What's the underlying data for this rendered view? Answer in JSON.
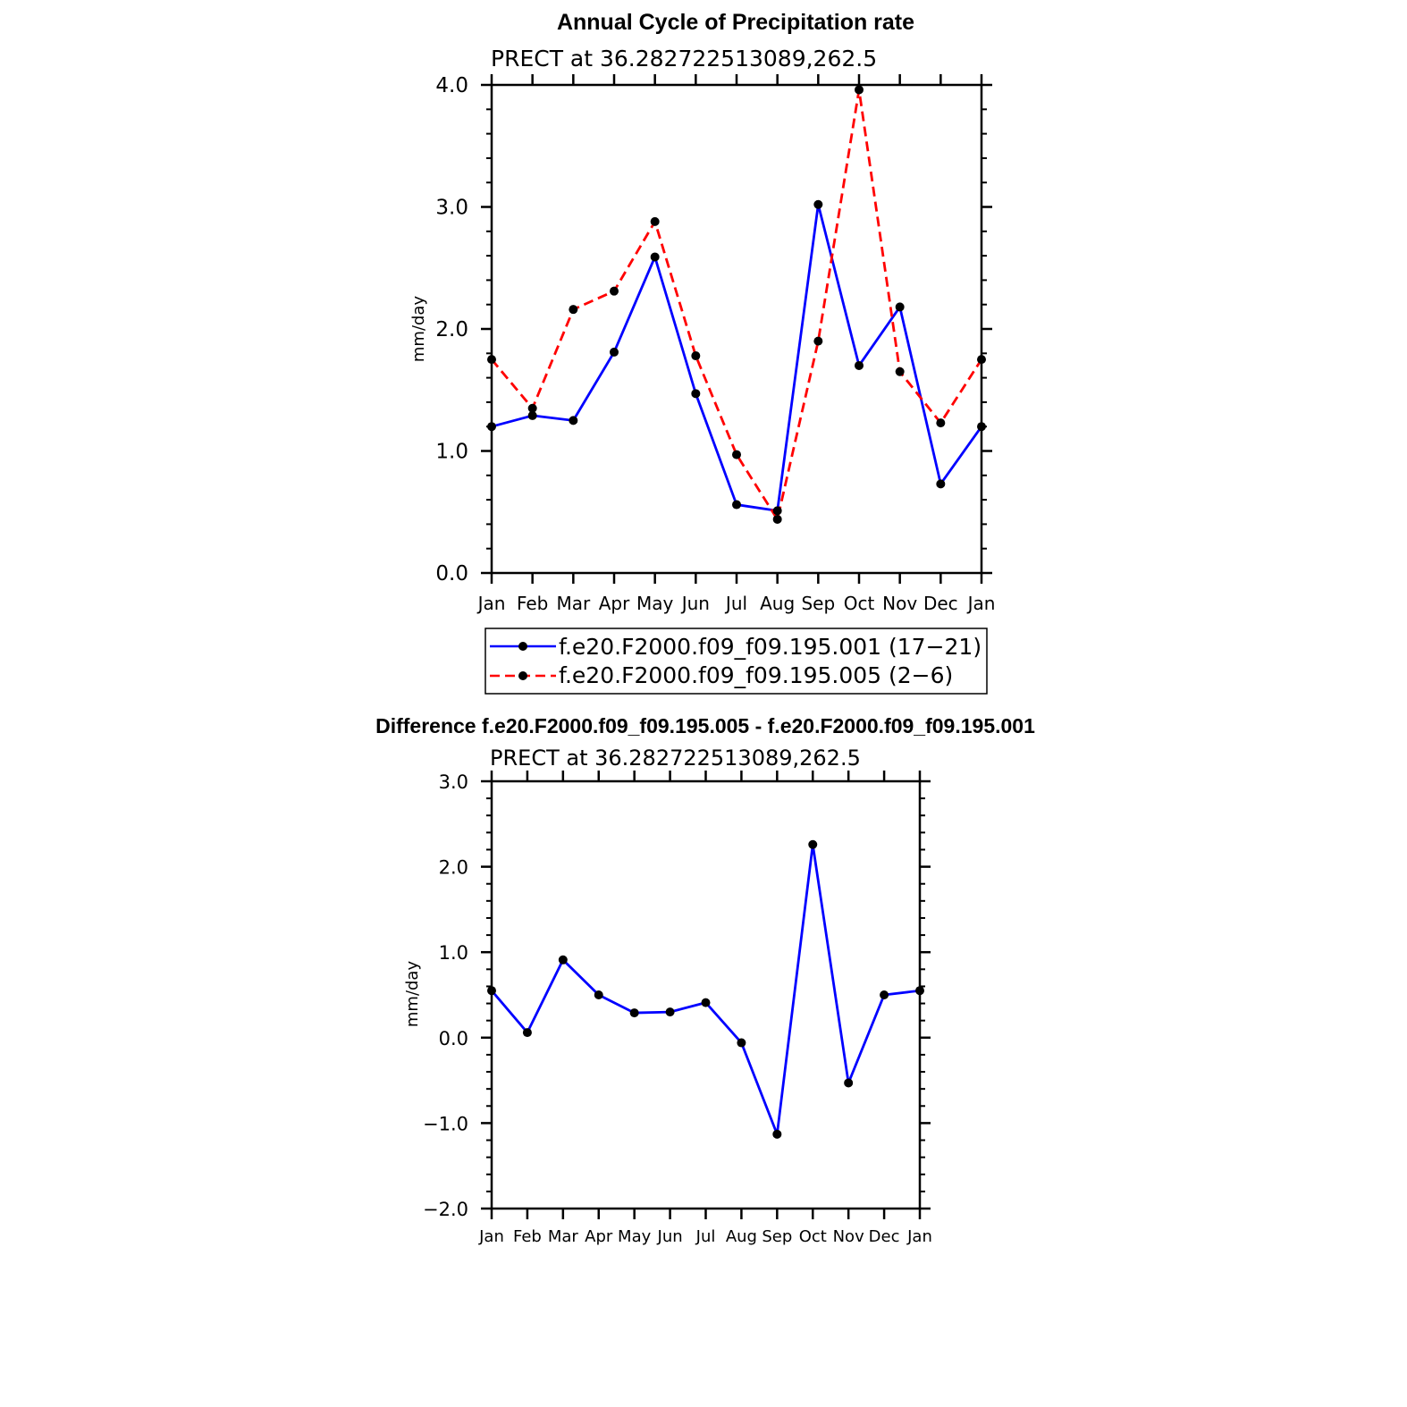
{
  "chart_data": [
    {
      "type": "line",
      "title": "Annual Cycle of Precipitation rate",
      "subtitle": "PRECT at 36.282722513089,262.5",
      "xlabel": "",
      "ylabel": "mm/day",
      "ylim": [
        0,
        4
      ],
      "yticks": [
        "0.0",
        "1.0",
        "2.0",
        "3.0",
        "4.0"
      ],
      "categories": [
        "Jan",
        "Feb",
        "Mar",
        "Apr",
        "May",
        "Jun",
        "Jul",
        "Aug",
        "Sep",
        "Oct",
        "Nov",
        "Dec",
        "Jan"
      ],
      "series": [
        {
          "name": "f.e20.F2000.f09_f09.195.001 (17−21)",
          "color": "#0000ff",
          "dashed": false,
          "values": [
            1.2,
            1.29,
            1.25,
            1.81,
            2.59,
            1.47,
            0.56,
            0.51,
            3.02,
            1.7,
            2.18,
            0.73,
            1.2
          ]
        },
        {
          "name": "f.e20.F2000.f09_f09.195.005 (2−6)",
          "color": "#ff0000",
          "dashed": true,
          "values": [
            1.75,
            1.35,
            2.16,
            2.31,
            2.88,
            1.78,
            0.97,
            0.44,
            1.9,
            3.96,
            1.65,
            1.23,
            1.75
          ]
        }
      ],
      "legend": "below",
      "grid": false
    },
    {
      "type": "line",
      "title": "Difference f.e20.F2000.f09_f09.195.005 - f.e20.F2000.f09_f09.195.001",
      "subtitle": "PRECT at 36.282722513089,262.5",
      "xlabel": "",
      "ylabel": "mm/day",
      "ylim": [
        -2,
        3
      ],
      "yticks": [
        "−2.0",
        "−1.0",
        "0.0",
        "1.0",
        "2.0",
        "3.0"
      ],
      "categories": [
        "Jan",
        "Feb",
        "Mar",
        "Apr",
        "May",
        "Jun",
        "Jul",
        "Aug",
        "Sep",
        "Oct",
        "Nov",
        "Dec",
        "Jan"
      ],
      "series": [
        {
          "color": "#0000ff",
          "dashed": false,
          "values": [
            0.55,
            0.06,
            0.91,
            0.5,
            0.29,
            0.3,
            0.41,
            -0.06,
            -1.13,
            2.26,
            -0.53,
            0.5,
            0.55
          ]
        }
      ],
      "legend": "none",
      "grid": false
    }
  ]
}
